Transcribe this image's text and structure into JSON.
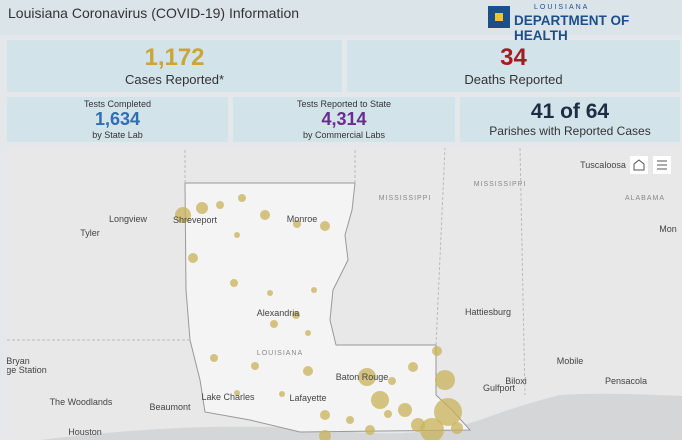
{
  "header": {
    "title": "Louisiana Coronavirus (COVID-19) Information",
    "logo_state": "LOUISIANA",
    "logo_org": "DEPARTMENT OF HEALTH"
  },
  "cards": [
    {
      "value": "1,172",
      "label": "Cases Reported*"
    },
    {
      "value": "34",
      "label": "Deaths Reported"
    },
    {
      "heading": "Tests Completed",
      "value": "1,634",
      "label": "by State Lab"
    },
    {
      "heading": "Tests Reported to State",
      "value": "4,314",
      "label": "by Commercial Labs"
    },
    {
      "value": "41 of 64",
      "label": "Parishes with Reported Cases"
    }
  ],
  "map": {
    "labels": [
      "Shreveport",
      "Longview",
      "Tyler",
      "Monroe",
      "MISSISSIPPI",
      "MISSISSIPPI",
      "Tuscaloosa",
      "ALABAMA",
      "Mon",
      "Alexandria",
      "Hattiesburg",
      "LOUISIANA",
      "Baton Rouge",
      "Lake Charles",
      "Lafayette",
      "Beaumont",
      "The Woodlands",
      "Houston",
      "Bryan",
      "ege Station",
      "Mobile",
      "Pensacola",
      "Biloxi",
      "Gulfport"
    ]
  }
}
